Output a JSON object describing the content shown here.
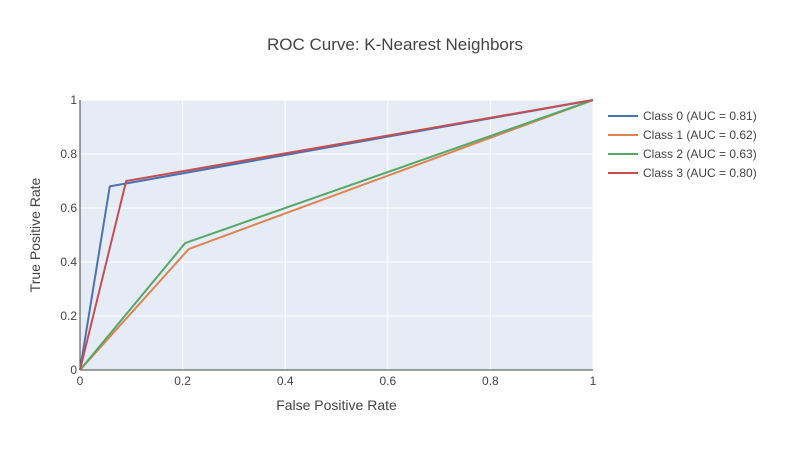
{
  "chart_data": {
    "type": "line",
    "title": "ROC Curve: K-Nearest Neighbors",
    "xlabel": "False Positive Rate",
    "ylabel": "True Positive Rate",
    "xlim": [
      0,
      1
    ],
    "ylim": [
      0,
      1
    ],
    "x_ticks": [
      0,
      0.2,
      0.4,
      0.6,
      0.8,
      1
    ],
    "y_ticks": [
      0,
      0.2,
      0.4,
      0.6,
      0.8,
      1
    ],
    "x_tick_labels": [
      "0",
      "0.2",
      "0.4",
      "0.6",
      "0.8",
      "1"
    ],
    "y_tick_labels": [
      "0",
      "0.2",
      "0.4",
      "0.6",
      "0.8",
      "1"
    ],
    "grid": true,
    "legend_position": "right",
    "background_color": "#e5ecf6",
    "series": [
      {
        "name": "Class 0 (AUC = 0.81)",
        "color": "#4c72b0",
        "x": [
          0,
          0.058,
          1
        ],
        "y": [
          0,
          0.68,
          1
        ]
      },
      {
        "name": "Class 1 (AUC = 0.62)",
        "color": "#dd8452",
        "x": [
          0,
          0.212,
          1
        ],
        "y": [
          0,
          0.448,
          1
        ]
      },
      {
        "name": "Class 2 (AUC = 0.63)",
        "color": "#55a868",
        "x": [
          0,
          0.205,
          1
        ],
        "y": [
          0,
          0.47,
          1
        ]
      },
      {
        "name": "Class 3 (AUC = 0.80)",
        "color": "#c44e52",
        "x": [
          0,
          0.09,
          1
        ],
        "y": [
          0,
          0.7,
          1
        ]
      }
    ]
  }
}
